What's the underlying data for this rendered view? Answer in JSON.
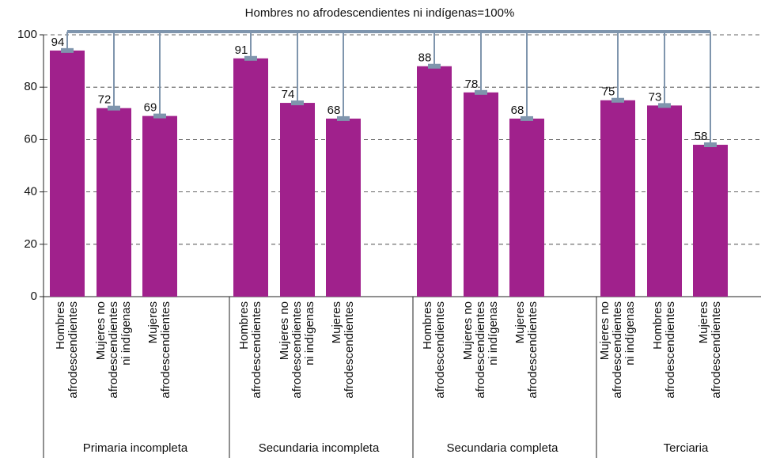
{
  "chart_data": {
    "type": "bar",
    "title": "Hombres no afrodescendientes ni indígenas=100%",
    "color": "#a0218c",
    "ylim": [
      0,
      100
    ],
    "yticks": [
      0,
      20,
      40,
      60,
      80,
      100
    ],
    "grid": true,
    "groups": [
      {
        "name": "Primaria incompleta",
        "categories": [
          [
            "Hombres",
            "afrodescendientes"
          ],
          [
            "Mujeres no",
            "afrodescendientes",
            "ni indígenas"
          ],
          [
            "Mujeres",
            "afrodescendientes"
          ]
        ],
        "values": [
          94,
          72,
          69
        ]
      },
      {
        "name": "Secundaria incompleta",
        "categories": [
          [
            "Hombres",
            "afrodescendientes"
          ],
          [
            "Mujeres no",
            "afrodescendientes",
            "ni indígenas"
          ],
          [
            "Mujeres",
            "afrodescendientes"
          ]
        ],
        "values": [
          91,
          74,
          68
        ]
      },
      {
        "name": "Secundaria completa",
        "categories": [
          [
            "Hombres",
            "afrodescendientes"
          ],
          [
            "Mujeres no",
            "afrodescendientes",
            "ni indígenas"
          ],
          [
            "Mujeres",
            "afrodescendientes"
          ]
        ],
        "values": [
          88,
          78,
          68
        ]
      },
      {
        "name": "Terciaria",
        "categories": [
          [
            "Mujeres no",
            "afrodescendientes",
            "ni indígenas"
          ],
          [
            "Hombres",
            "afrodescendientes"
          ],
          [
            "Mujeres",
            "afrodescendientes"
          ]
        ],
        "values": [
          75,
          73,
          58
        ]
      }
    ]
  }
}
